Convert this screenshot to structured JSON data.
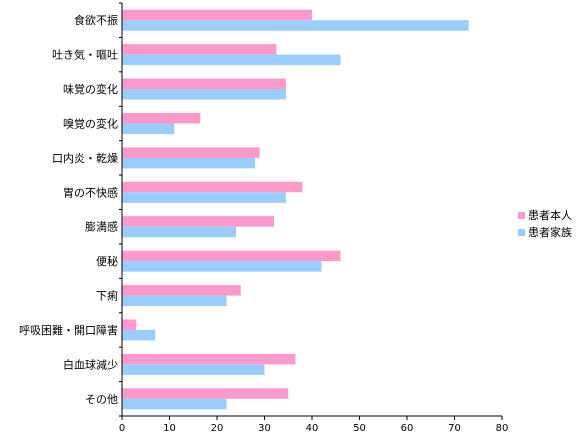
{
  "chart_data": {
    "type": "bar",
    "orientation": "horizontal",
    "title": "",
    "xlabel": "",
    "ylabel": "",
    "xlim": [
      0,
      80
    ],
    "x_ticks": [
      "0",
      "10",
      "20",
      "30",
      "40",
      "50",
      "60",
      "70",
      "80"
    ],
    "grid": false,
    "legend_position": "right",
    "categories": [
      "食欲不振",
      "吐き気・嘔吐",
      "味覚の変化",
      "嗅覚の変化",
      "口内炎・乾燥",
      "胃の不快感",
      "膨満感",
      "便秘",
      "下痢",
      "呼吸困難・開口障害",
      "白血球減少",
      "その他"
    ],
    "series": [
      {
        "name": "患者本人",
        "color": "#ff99cc",
        "values": [
          40,
          32.5,
          34.5,
          16.5,
          29,
          38,
          32,
          46,
          25,
          3,
          36.5,
          35
        ]
      },
      {
        "name": "患者家族",
        "color": "#99ccff",
        "values": [
          73,
          46,
          34.5,
          11,
          28,
          34.5,
          24,
          42,
          22,
          7,
          30,
          22
        ]
      }
    ]
  }
}
